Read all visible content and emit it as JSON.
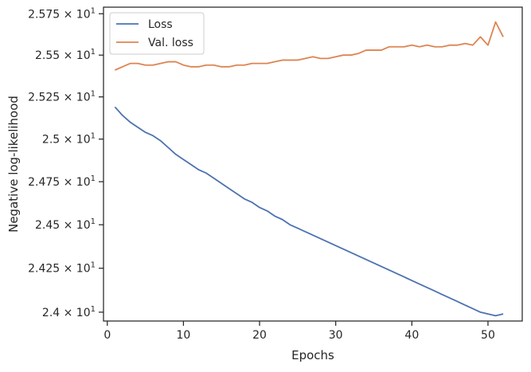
{
  "chart_data": {
    "type": "line",
    "xlabel": "Epochs",
    "ylabel": "Negative log-likelihood",
    "xlim": [
      -0.5,
      54.5
    ],
    "ylim": [
      23.95,
      25.79
    ],
    "y_scale": "log",
    "grid": false,
    "legend_position": "upper-left",
    "x_ticks": [
      0,
      10,
      20,
      30,
      40,
      50
    ],
    "y_ticks": [
      {
        "value": 24.0,
        "mantissa": "2.4"
      },
      {
        "value": 24.25,
        "mantissa": "2.425"
      },
      {
        "value": 24.5,
        "mantissa": "2.45"
      },
      {
        "value": 24.75,
        "mantissa": "2.475"
      },
      {
        "value": 25.0,
        "mantissa": "2.5"
      },
      {
        "value": 25.25,
        "mantissa": "2.525"
      },
      {
        "value": 25.5,
        "mantissa": "2.55"
      },
      {
        "value": 25.75,
        "mantissa": "2.575"
      }
    ],
    "y_tick_times": "×",
    "y_tick_base": "10",
    "y_tick_exp": "1",
    "series": [
      {
        "name": "Loss",
        "color": "#4c72b0",
        "x": [
          1,
          2,
          3,
          4,
          5,
          6,
          7,
          8,
          9,
          10,
          11,
          12,
          13,
          14,
          15,
          16,
          17,
          18,
          19,
          20,
          21,
          22,
          23,
          24,
          25,
          26,
          27,
          28,
          29,
          30,
          31,
          32,
          33,
          34,
          35,
          36,
          37,
          38,
          39,
          40,
          41,
          42,
          43,
          44,
          45,
          46,
          47,
          48,
          49,
          50,
          51,
          52
        ],
        "values": [
          25.19,
          25.14,
          25.1,
          25.07,
          25.04,
          25.02,
          24.99,
          24.95,
          24.91,
          24.88,
          24.85,
          24.82,
          24.8,
          24.77,
          24.74,
          24.71,
          24.68,
          24.65,
          24.63,
          24.6,
          24.58,
          24.55,
          24.53,
          24.5,
          24.48,
          24.46,
          24.44,
          24.42,
          24.4,
          24.38,
          24.36,
          24.34,
          24.32,
          24.3,
          24.28,
          24.26,
          24.24,
          24.22,
          24.2,
          24.18,
          24.16,
          24.14,
          24.12,
          24.1,
          24.08,
          24.06,
          24.04,
          24.02,
          24.0,
          23.99,
          23.98,
          23.99
        ]
      },
      {
        "name": "Val. loss",
        "color": "#dd8452",
        "x": [
          1,
          2,
          3,
          4,
          5,
          6,
          7,
          8,
          9,
          10,
          11,
          12,
          13,
          14,
          15,
          16,
          17,
          18,
          19,
          20,
          21,
          22,
          23,
          24,
          25,
          26,
          27,
          28,
          29,
          30,
          31,
          32,
          33,
          34,
          35,
          36,
          37,
          38,
          39,
          40,
          41,
          42,
          43,
          44,
          45,
          46,
          47,
          48,
          49,
          50,
          51,
          52
        ],
        "values": [
          25.41,
          25.43,
          25.45,
          25.45,
          25.44,
          25.44,
          25.45,
          25.46,
          25.46,
          25.44,
          25.43,
          25.43,
          25.44,
          25.44,
          25.43,
          25.43,
          25.44,
          25.44,
          25.45,
          25.45,
          25.45,
          25.46,
          25.47,
          25.47,
          25.47,
          25.48,
          25.49,
          25.48,
          25.48,
          25.49,
          25.5,
          25.5,
          25.51,
          25.53,
          25.53,
          25.53,
          25.55,
          25.55,
          25.55,
          25.56,
          25.55,
          25.56,
          25.55,
          25.55,
          25.56,
          25.56,
          25.57,
          25.56,
          25.61,
          25.56,
          25.7,
          25.61
        ]
      }
    ]
  }
}
